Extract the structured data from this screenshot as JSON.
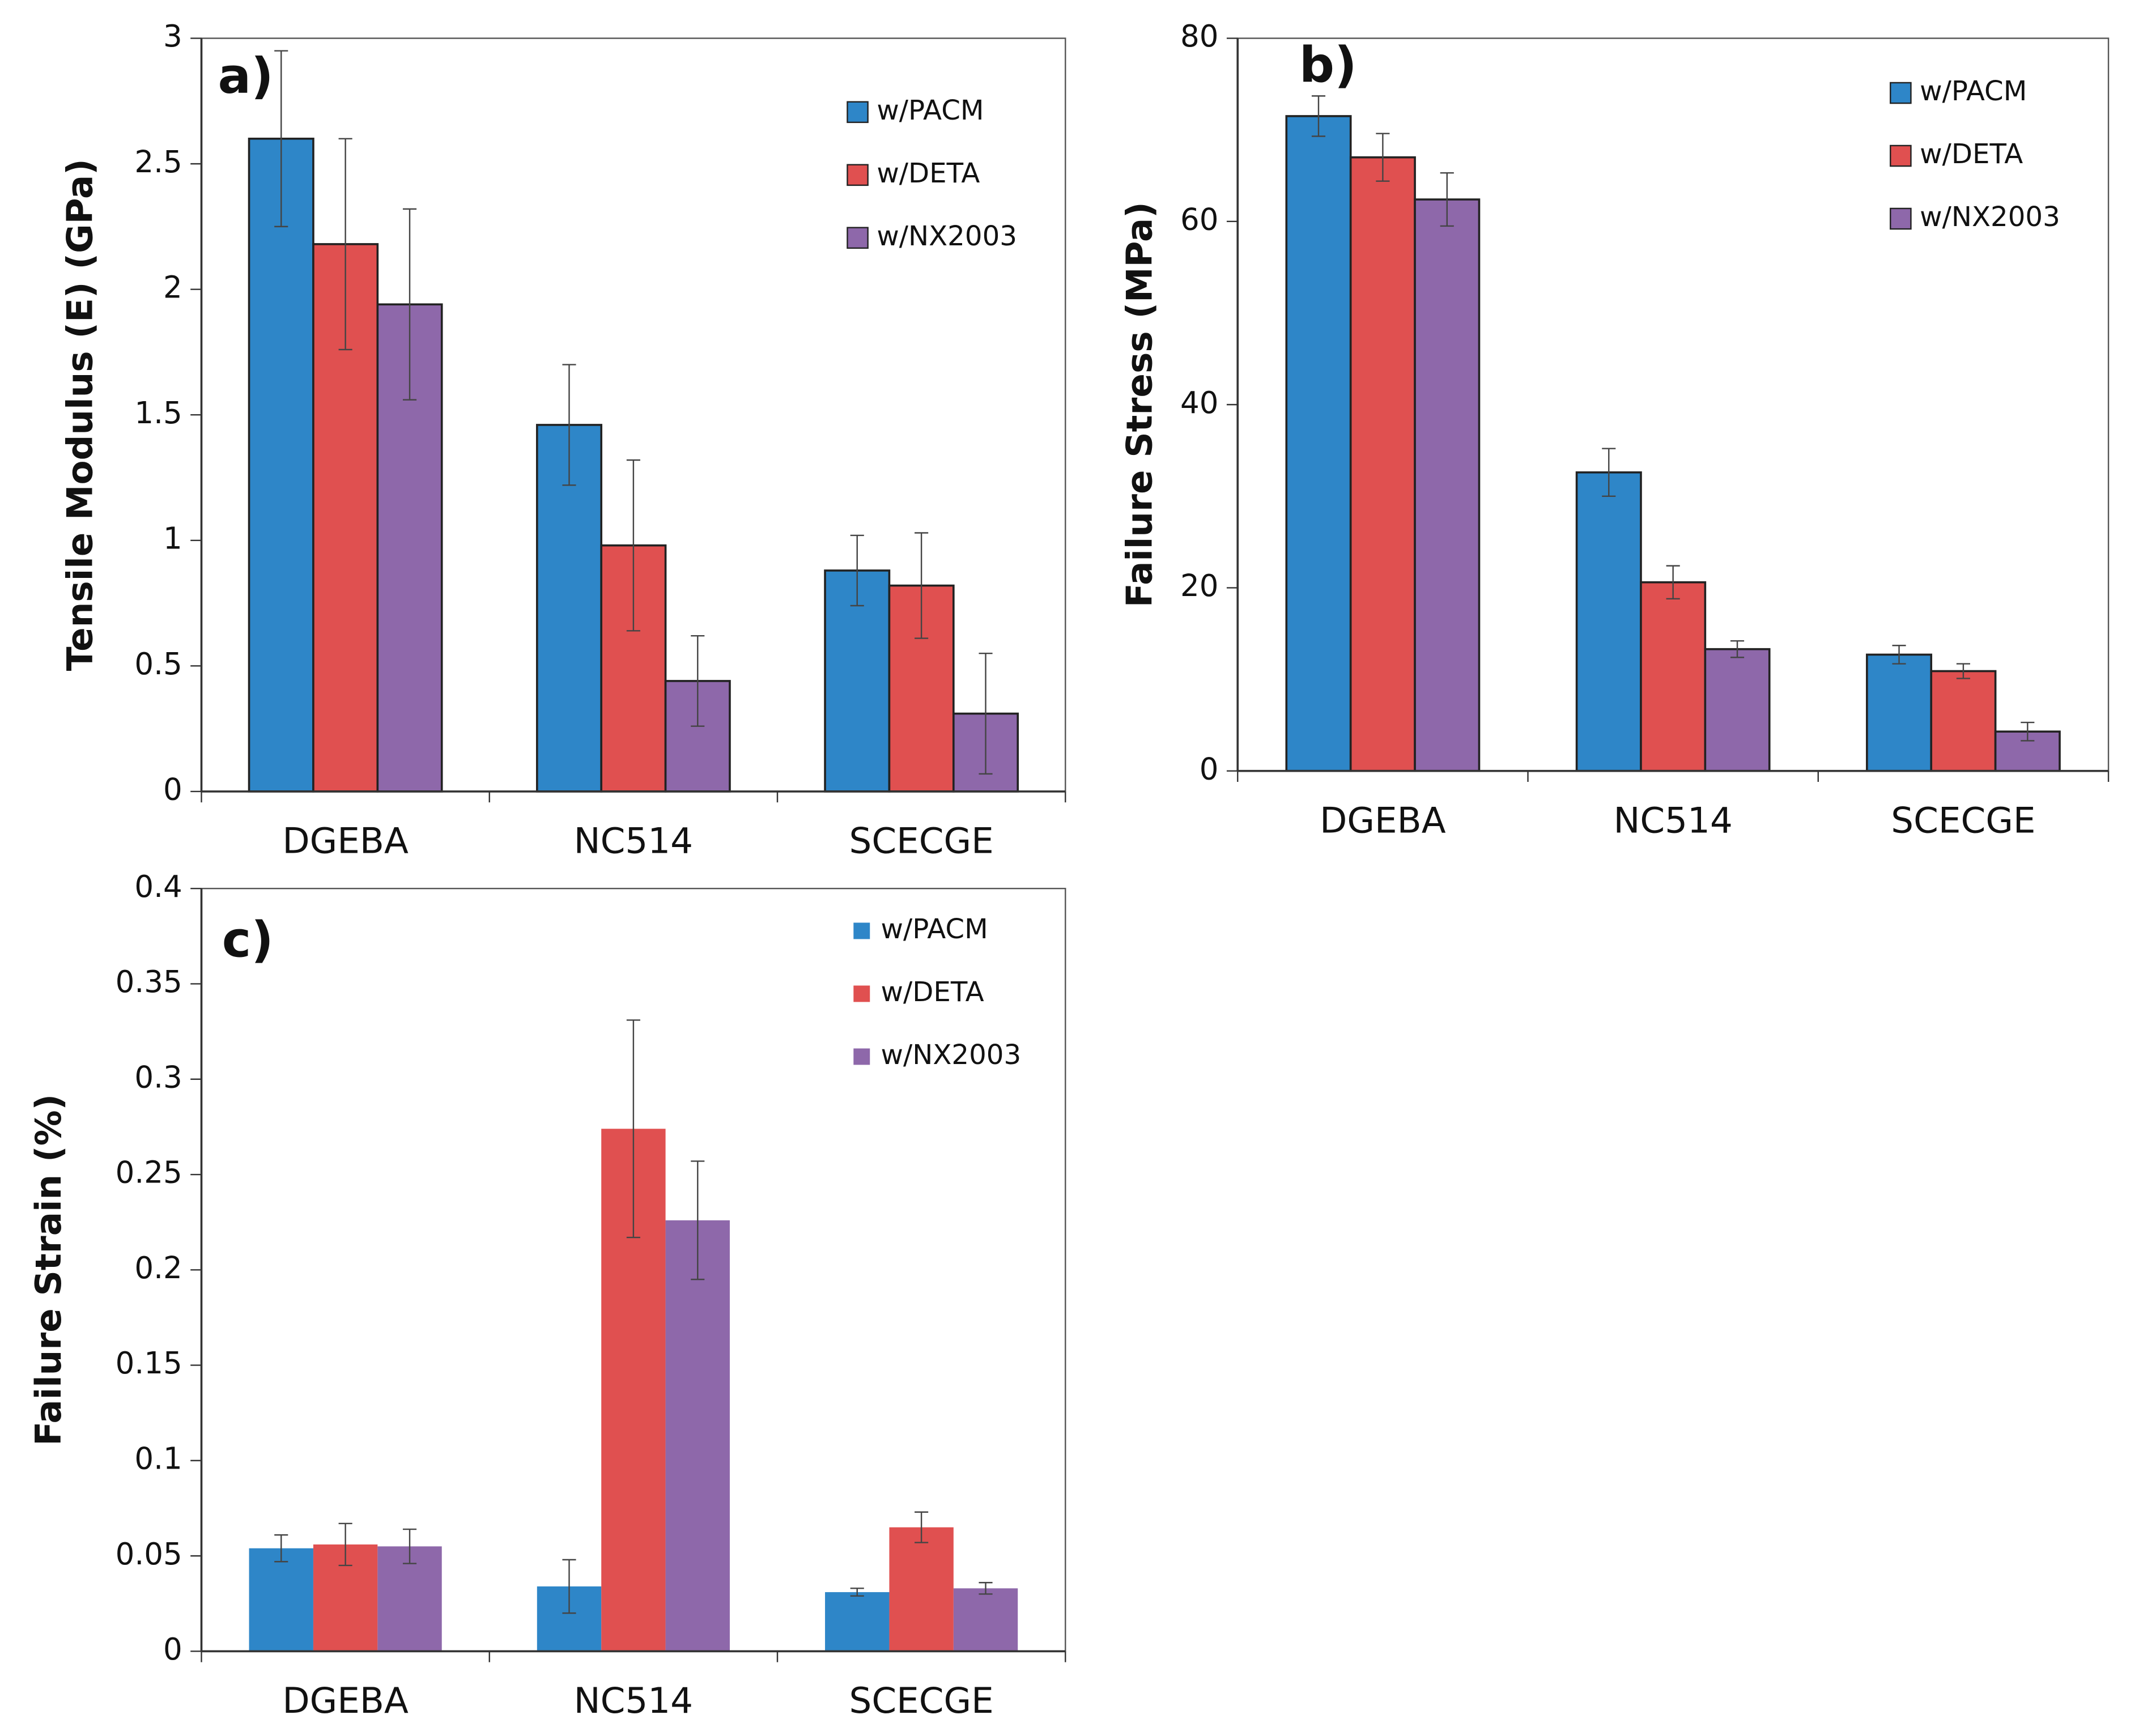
{
  "chart_data": [
    {
      "type": "bar",
      "panel_label": "a)",
      "y_label": "Tensile Modulus (E) (GPa)",
      "categories": [
        "DGEBA",
        "NC514",
        "SCECGE"
      ],
      "series": [
        {
          "name": "w/PACM",
          "color": "#2e86c8",
          "values": [
            2.6,
            1.46,
            0.88
          ],
          "errors": [
            0.35,
            0.24,
            0.14
          ]
        },
        {
          "name": "w/DETA",
          "color": "#e05050",
          "values": [
            2.18,
            0.98,
            0.82
          ],
          "errors": [
            0.42,
            0.34,
            0.21
          ]
        },
        {
          "name": "w/NX2003",
          "color": "#8e68aa",
          "values": [
            1.94,
            0.44,
            0.31
          ],
          "errors": [
            0.38,
            0.18,
            0.24
          ]
        }
      ],
      "ylim": [
        0,
        3
      ],
      "yticks": [
        0,
        0.5,
        1,
        1.5,
        2,
        2.5,
        3
      ],
      "bar_outline": true,
      "legend": "upper right"
    },
    {
      "type": "bar",
      "panel_label": "b)",
      "y_label": "Failure Stress (MPa)",
      "categories": [
        "DGEBA",
        "NC514",
        "SCECGE"
      ],
      "series": [
        {
          "name": "w/PACM",
          "color": "#2e86c8",
          "values": [
            71.5,
            32.6,
            12.7
          ],
          "errors": [
            2.2,
            2.6,
            1.0
          ]
        },
        {
          "name": "w/DETA",
          "color": "#e05050",
          "values": [
            67,
            20.6,
            10.9
          ],
          "errors": [
            2.6,
            1.8,
            0.8
          ]
        },
        {
          "name": "w/NX2003",
          "color": "#8e68aa",
          "values": [
            62.4,
            13.3,
            4.3
          ],
          "errors": [
            2.9,
            0.9,
            1.0
          ]
        }
      ],
      "ylim": [
        0,
        80
      ],
      "yticks": [
        0,
        20,
        40,
        60,
        80
      ],
      "bar_outline": true,
      "legend": "upper right"
    },
    {
      "type": "bar",
      "panel_label": "c)",
      "y_label": "Failure Strain (%)",
      "categories": [
        "DGEBA",
        "NC514",
        "SCECGE"
      ],
      "series": [
        {
          "name": "w/PACM",
          "color": "#2e86c8",
          "values": [
            0.054,
            0.034,
            0.031
          ],
          "errors": [
            0.007,
            0.014,
            0.002
          ]
        },
        {
          "name": "w/DETA",
          "color": "#e05050",
          "values": [
            0.056,
            0.274,
            0.065
          ],
          "errors": [
            0.011,
            0.057,
            0.008
          ]
        },
        {
          "name": "w/NX2003",
          "color": "#8e68aa",
          "values": [
            0.055,
            0.226,
            0.033
          ],
          "errors": [
            0.009,
            0.031,
            0.003
          ]
        }
      ],
      "ylim": [
        0,
        0.4
      ],
      "yticks": [
        0,
        0.05,
        0.1,
        0.15,
        0.2,
        0.25,
        0.3,
        0.35,
        0.4
      ],
      "bar_outline": false,
      "legend": "upper right"
    }
  ]
}
